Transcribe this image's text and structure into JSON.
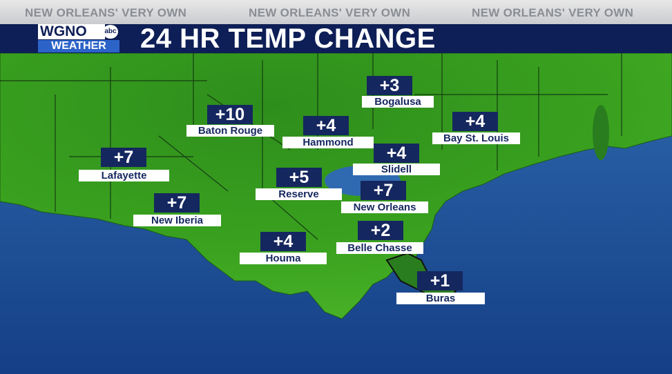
{
  "header": {
    "taglines": [
      "NEW ORLEANS' VERY OWN",
      "NEW ORLEANS' VERY OWN",
      "NEW ORLEANS' VERY OWN"
    ],
    "logo": {
      "station": "WGNO",
      "network": "abc",
      "label": "WEATHER"
    },
    "title": "24 HR TEMP CHANGE"
  },
  "cities": [
    {
      "name": "Bogalusa",
      "change": "+3"
    },
    {
      "name": "Baton Rouge",
      "change": "+10"
    },
    {
      "name": "Hammond",
      "change": "+4"
    },
    {
      "name": "Bay St. Louis",
      "change": "+4"
    },
    {
      "name": "Slidell",
      "change": "+4"
    },
    {
      "name": "Lafayette",
      "change": "+7"
    },
    {
      "name": "Reserve",
      "change": "+5"
    },
    {
      "name": "New Orleans",
      "change": "+7"
    },
    {
      "name": "New Iberia",
      "change": "+7"
    },
    {
      "name": "Belle Chasse",
      "change": "+2"
    },
    {
      "name": "Houma",
      "change": "+4"
    },
    {
      "name": "Buras",
      "change": "+1"
    }
  ]
}
